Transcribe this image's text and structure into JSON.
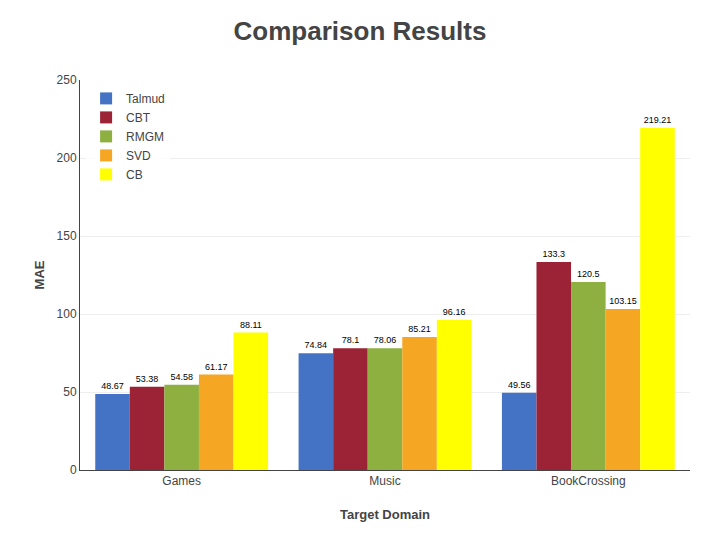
{
  "chart_data": {
    "type": "bar",
    "title": "Comparison Results",
    "categories": [
      "Games",
      "Music",
      "BookCrossing"
    ],
    "series": [
      {
        "name": "Talmud",
        "color": "#4472C4",
        "values": [
          48.67,
          74.84,
          49.56
        ]
      },
      {
        "name": "CBT",
        "color": "#9B2335",
        "values": [
          53.38,
          78.1,
          133.3
        ]
      },
      {
        "name": "RMGM",
        "color": "#8DB040",
        "values": [
          54.58,
          78.06,
          120.5
        ]
      },
      {
        "name": "SVD",
        "color": "#F5A623",
        "values": [
          61.17,
          85.21,
          103.15
        ]
      },
      {
        "name": "CB",
        "color": "#FFFF00",
        "values": [
          88.11,
          96.16,
          219.21
        ]
      }
    ],
    "xlabel": "Target Domain",
    "ylabel": "MAE",
    "ylim": [
      0,
      250
    ],
    "yticks": [
      0,
      50,
      100,
      150,
      200,
      250
    ],
    "grid": true,
    "legend": "upper left",
    "data_labels": true
  }
}
